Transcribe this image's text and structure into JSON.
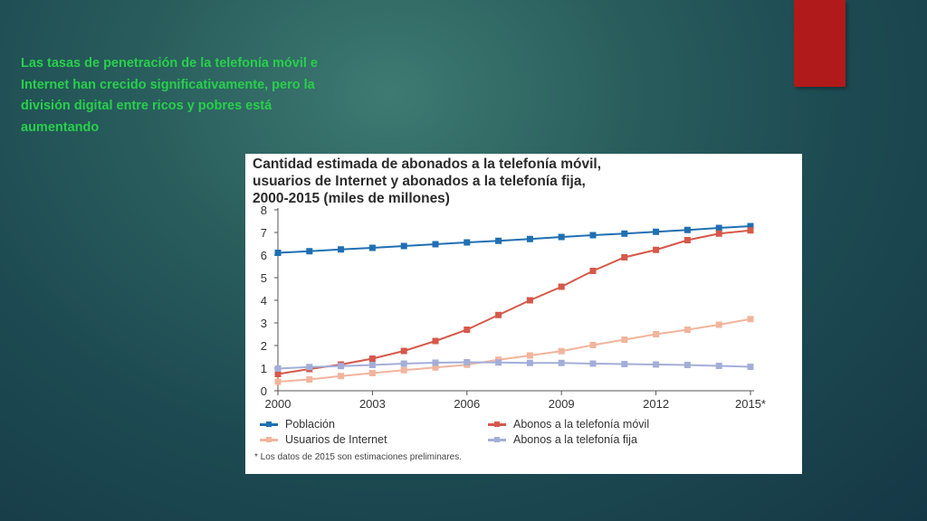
{
  "slide": {
    "text": "Las tasas de penetración de la telefonía móvil e Internet han crecido significativamente, pero la división digital entre ricos y pobres está aumentando",
    "accent_color": "#b11a1a",
    "text_color": "#27d04a"
  },
  "chart_data": {
    "type": "line",
    "title_lines": [
      "Cantidad estimada de abonados a la telefonía móvil,",
      "usuarios de Internet y abonados a la telefonía fija,",
      "2000-2015 (miles de millones)"
    ],
    "x": [
      2000,
      2001,
      2002,
      2003,
      2004,
      2005,
      2006,
      2007,
      2008,
      2009,
      2010,
      2011,
      2012,
      2013,
      2014,
      2015
    ],
    "x_ticks": [
      "2000",
      "2003",
      "2006",
      "2009",
      "2012",
      "2015*"
    ],
    "x_tick_values": [
      2000,
      2003,
      2006,
      2009,
      2012,
      2015
    ],
    "ylim": [
      0,
      8
    ],
    "y_ticks": [
      0,
      1,
      2,
      3,
      4,
      5,
      6,
      7,
      8
    ],
    "legend_position": "bottom",
    "series": [
      {
        "name": "Población",
        "color": "#1f6fb2",
        "values": [
          6.1,
          6.17,
          6.25,
          6.32,
          6.4,
          6.48,
          6.56,
          6.63,
          6.71,
          6.8,
          6.88,
          6.95,
          7.03,
          7.11,
          7.2,
          7.28
        ]
      },
      {
        "name": "Abonos a la telefonía móvil",
        "color": "#d6584a",
        "values": [
          0.74,
          0.96,
          1.16,
          1.42,
          1.76,
          2.2,
          2.7,
          3.35,
          4.0,
          4.6,
          5.3,
          5.9,
          6.23,
          6.66,
          6.95,
          7.09
        ]
      },
      {
        "name": "Usuarios de Internet",
        "color": "#f2b49c",
        "values": [
          0.4,
          0.5,
          0.65,
          0.78,
          0.91,
          1.03,
          1.15,
          1.37,
          1.56,
          1.75,
          2.02,
          2.26,
          2.5,
          2.7,
          2.92,
          3.17
        ]
      },
      {
        "name": "Abonos a la telefonía fija",
        "color": "#a3aed8",
        "values": [
          0.98,
          1.05,
          1.09,
          1.14,
          1.2,
          1.24,
          1.26,
          1.25,
          1.23,
          1.23,
          1.2,
          1.18,
          1.16,
          1.14,
          1.1,
          1.06
        ]
      }
    ],
    "footnote": "* Los datos de 2015 son estimaciones preliminares."
  }
}
